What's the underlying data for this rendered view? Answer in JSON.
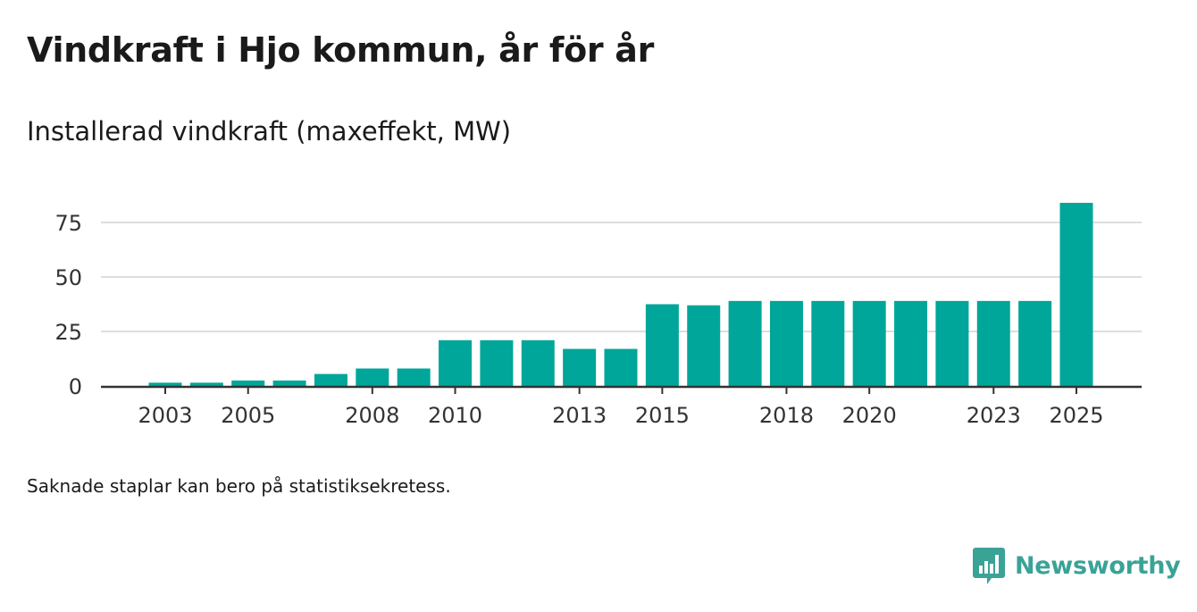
{
  "header": {
    "title": "Vindkraft i Hjo kommun, år för år",
    "subtitle": "Installerad vindkraft (maxeffekt, MW)"
  },
  "footer": {
    "note": "Saknade staplar kan bero på statistiksekretess.",
    "brand": "Newsworthy"
  },
  "colors": {
    "bar": "#00a699",
    "grid": "#dddddd",
    "axis": "#333333",
    "brand": "#3aa396"
  },
  "chart_data": {
    "type": "bar",
    "title": "Vindkraft i Hjo kommun, år för år",
    "ylabel": "Installerad vindkraft (maxeffekt, MW)",
    "xlabel": "",
    "ylim": [
      0,
      90
    ],
    "yticks": [
      0,
      25,
      50,
      75
    ],
    "grid": true,
    "categories": [
      2003,
      2004,
      2005,
      2006,
      2007,
      2008,
      2009,
      2010,
      2011,
      2012,
      2013,
      2014,
      2015,
      2016,
      2017,
      2018,
      2019,
      2020,
      2021,
      2022,
      2023,
      2024,
      2025
    ],
    "values": [
      1.5,
      1.5,
      2.5,
      2.5,
      5.5,
      8,
      8,
      21,
      21,
      21,
      17,
      17,
      37.5,
      37,
      39,
      39,
      39,
      39,
      39,
      39,
      39,
      39,
      84
    ],
    "xtick_labels": [
      "2003",
      "2005",
      "2008",
      "2010",
      "2013",
      "2015",
      "2018",
      "2020",
      "2023",
      "2025"
    ]
  }
}
